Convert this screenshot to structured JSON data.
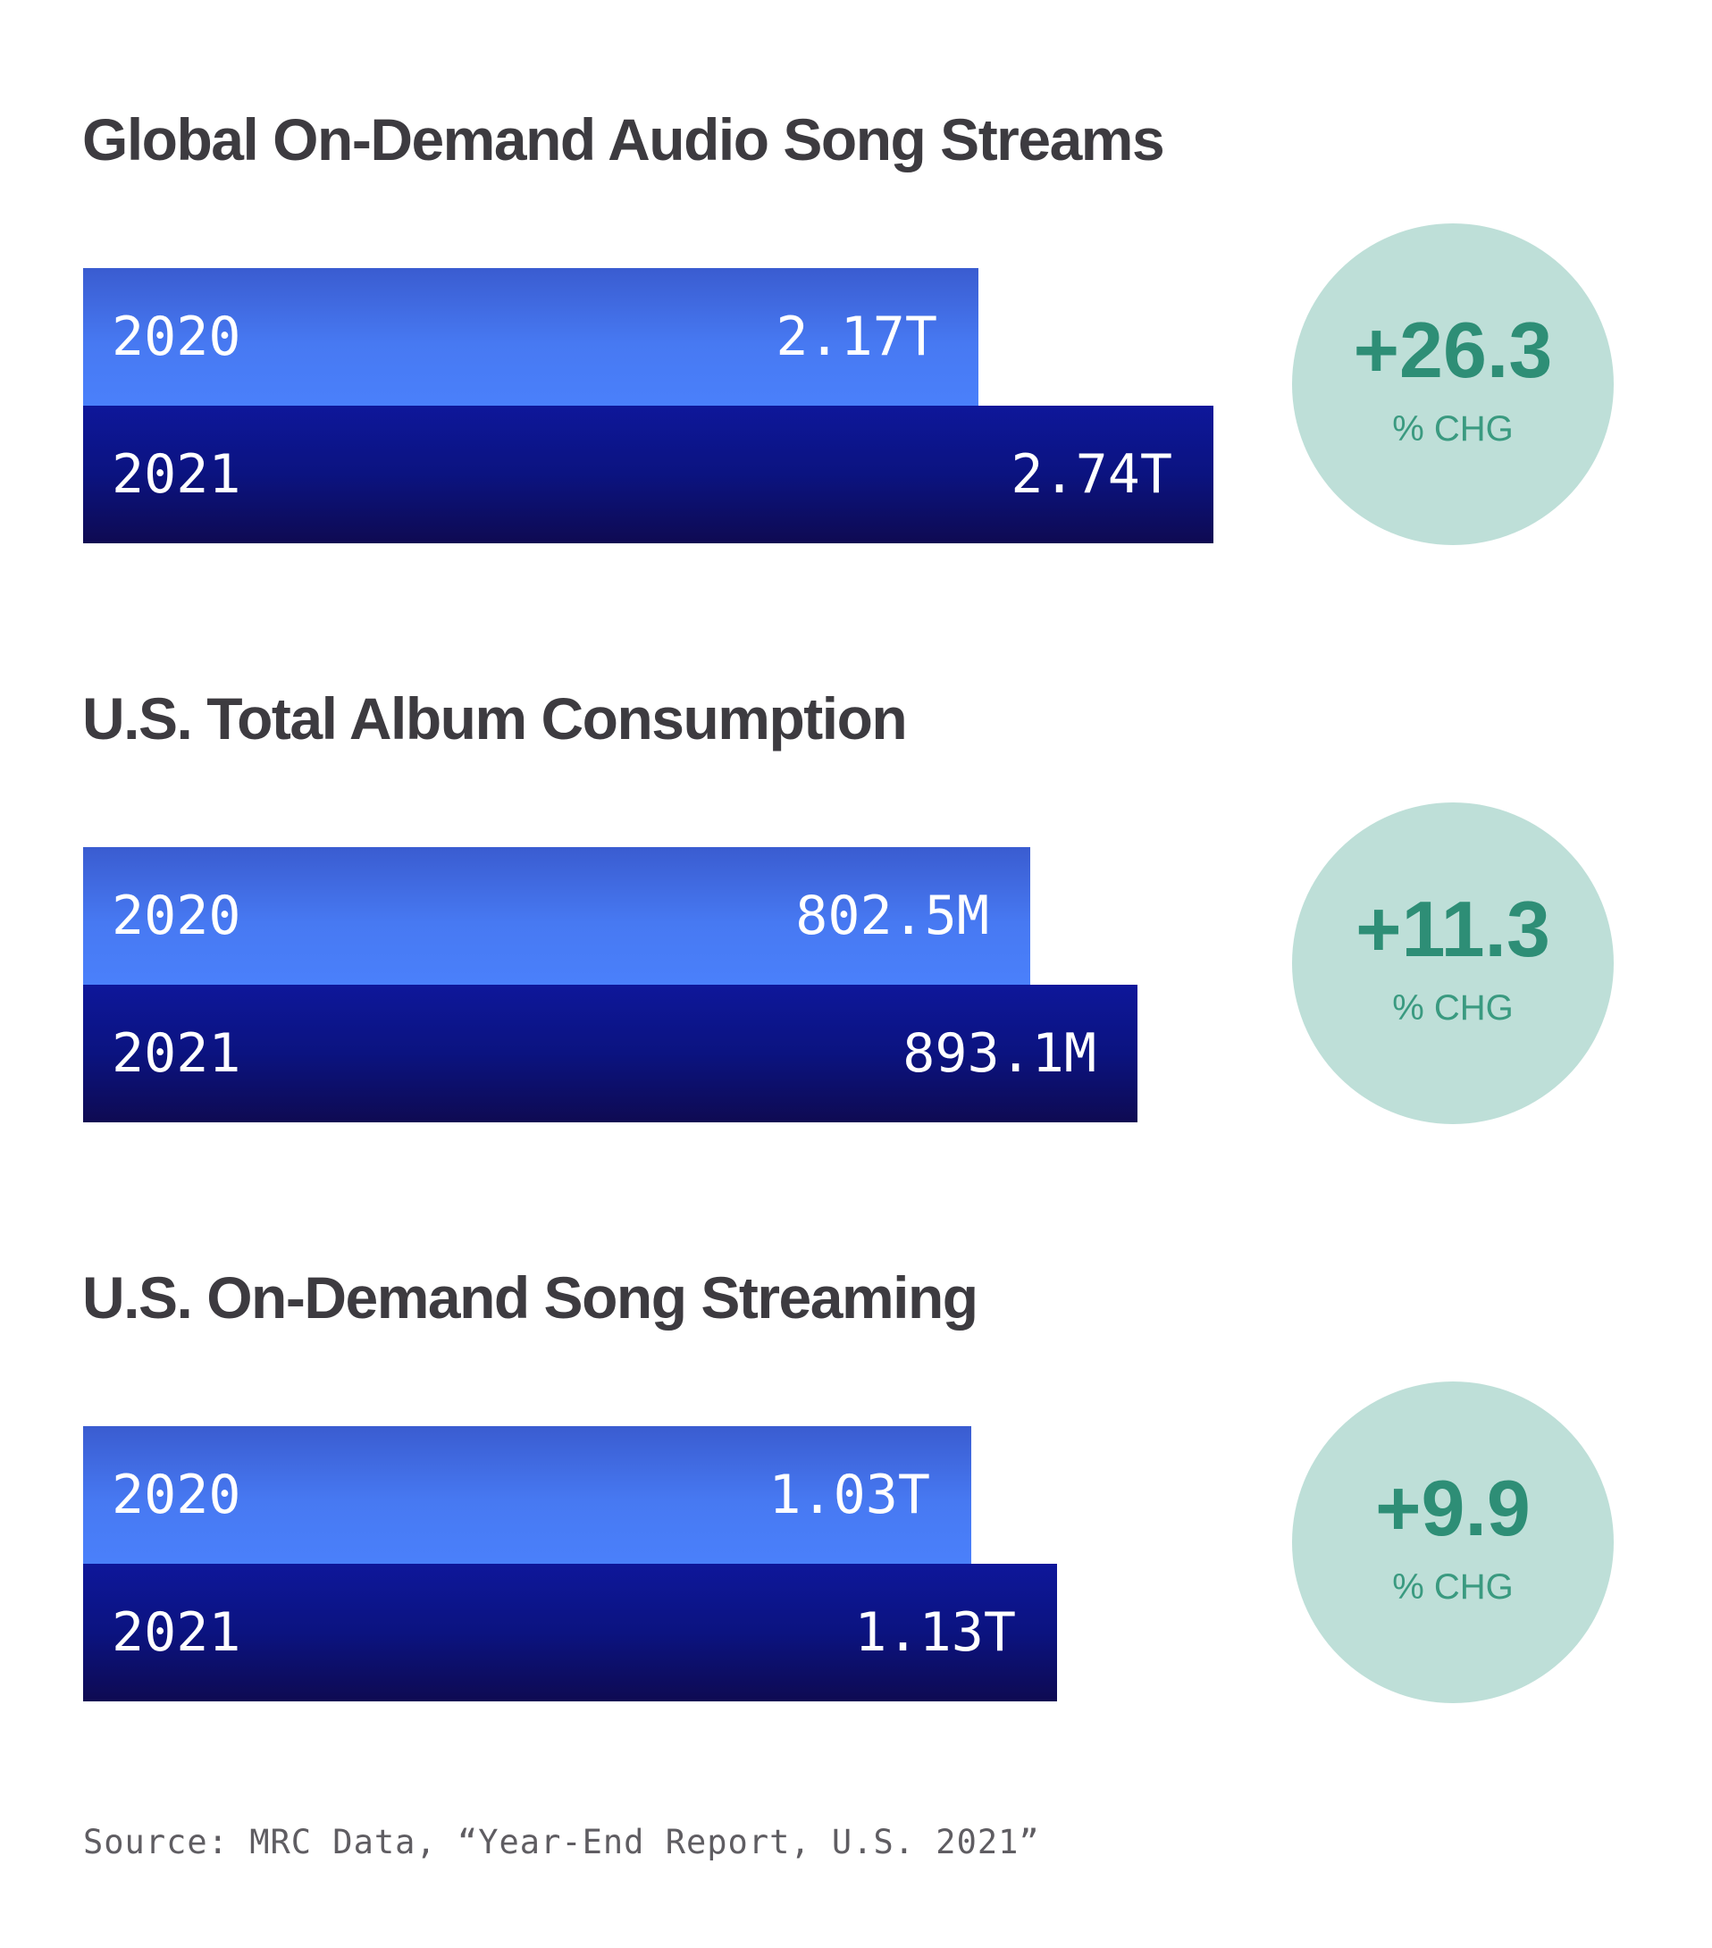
{
  "chart_data": [
    {
      "type": "bar",
      "orientation": "horizontal",
      "title": "Global On-Demand Audio Song Streams",
      "categories": [
        "2020",
        "2021"
      ],
      "values": [
        2.17,
        2.74
      ],
      "value_labels": [
        "2.17T",
        "2.74T"
      ],
      "unit": "T",
      "change": {
        "value": "+26.3",
        "unit": "% CHG"
      },
      "colors": {
        "2020": "#4779f2",
        "2021": "#0b1380"
      }
    },
    {
      "type": "bar",
      "orientation": "horizontal",
      "title": "U.S. Total Album Consumption",
      "categories": [
        "2020",
        "2021"
      ],
      "values": [
        802.5,
        893.1
      ],
      "value_labels": [
        "802.5M",
        "893.1M"
      ],
      "unit": "M",
      "change": {
        "value": "+11.3",
        "unit": "% CHG"
      },
      "colors": {
        "2020": "#4779f2",
        "2021": "#0b1380"
      }
    },
    {
      "type": "bar",
      "orientation": "horizontal",
      "title": "U.S. On-Demand Song Streaming",
      "categories": [
        "2020",
        "2021"
      ],
      "values": [
        1.03,
        1.13
      ],
      "value_labels": [
        "1.03T",
        "1.13T"
      ],
      "unit": "T",
      "change": {
        "value": "+9.9",
        "unit": "% CHG"
      },
      "colors": {
        "2020": "#4779f2",
        "2021": "#0b1380"
      }
    }
  ],
  "source": "Source: MRC Data, “Year-End Report, U.S. 2021”",
  "colors": {
    "title": "#3d3b40",
    "badge_bg": "#bedfd8",
    "badge_text": "#2e8e76"
  }
}
